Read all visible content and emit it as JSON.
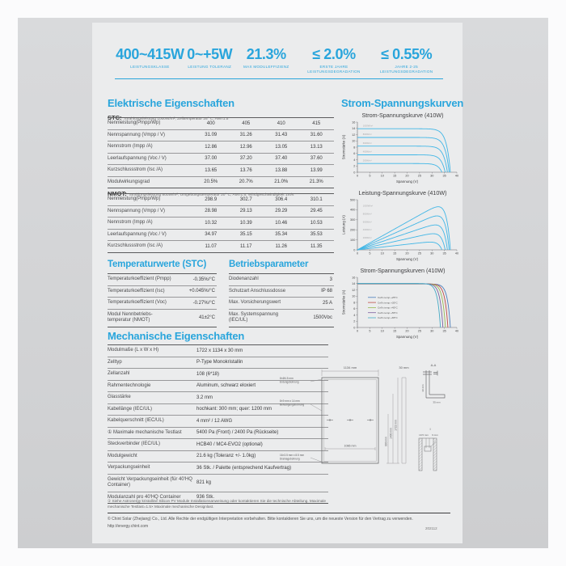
{
  "meta": {
    "accent_color": "#29a5dc",
    "curve_color": "#41b6e6",
    "page_bg": "#ebeced",
    "card_bg": "#d2d3d5"
  },
  "header": {
    "specs": [
      {
        "value": "400~415W",
        "label": "LEISTUNGSKLASSE"
      },
      {
        "value": "0~+5W",
        "label": "LEISTUNG TOLERANZ"
      },
      {
        "value": "21.3%",
        "label": "MAX MODULEFFIZIENZ"
      },
      {
        "value": "≤ 2.0%",
        "label": "ERSTE JAHRE LEISTUNGSDEGRADATION"
      },
      {
        "value": "≤ 0.55%",
        "label": "JAHRE 2-25 LEISTUNGSDEGRADATION"
      }
    ]
  },
  "electrical": {
    "title": "Elektrische Eigenschaften",
    "stc": {
      "tag": "STC:",
      "conditions": "Strahlungsleistung 1000W/m², Zelltemperatur 25° C, AM=1.5",
      "rows": [
        {
          "label": "Nennleistung(Pmpp/Wp)",
          "values": [
            "400",
            "405",
            "410",
            "415"
          ]
        },
        {
          "label": "Nennspannung (Vmpp / V)",
          "values": [
            "31.09",
            "31.26",
            "31.43",
            "31.60"
          ]
        },
        {
          "label": "Nennstrom (Impp /A)",
          "values": [
            "12.86",
            "12.96",
            "13.05",
            "13.13"
          ]
        },
        {
          "label": "Leerlaufspannung (Voc / V)",
          "values": [
            "37.00",
            "37.20",
            "37.40",
            "37.60"
          ]
        },
        {
          "label": "Kurzschlussstrom (Isc /A)",
          "values": [
            "13.65",
            "13.76",
            "13.88",
            "13.99"
          ]
        },
        {
          "label": "Modulwirkungsgrad",
          "values": [
            "20.5%",
            "20.7%",
            "21.0%",
            "21.3%"
          ]
        }
      ]
    },
    "nmot": {
      "tag": "NMOT:",
      "conditions": "Strahlungsleistung 800W/m², Umgebungstemperatur 20° C, AM=1.5, Windgeschwindigkeit 1m/s",
      "rows": [
        {
          "label": "Nennleistung(Pmpp/Wp)",
          "values": [
            "298.9",
            "302.7",
            "306.4",
            "310.1"
          ]
        },
        {
          "label": "Nennspannung (Vmpp / V)",
          "values": [
            "28.98",
            "29.13",
            "29.29",
            "29.45"
          ]
        },
        {
          "label": "Nennstrom (Impp /A)",
          "values": [
            "10.32",
            "10.39",
            "10.46",
            "10.53"
          ]
        },
        {
          "label": "Leerlaufspannung (Voc / V)",
          "values": [
            "34.97",
            "35.15",
            "35.34",
            "35.53"
          ]
        },
        {
          "label": "Kurzschlussstrom (Isc /A)",
          "values": [
            "11.07",
            "11.17",
            "11.26",
            "11.35"
          ]
        }
      ]
    }
  },
  "temperature": {
    "title": "Temperaturwerte (STC)",
    "rows": [
      {
        "label": "Temperaturkoeffizient (Pmpp)",
        "value": "-0.35%/°C"
      },
      {
        "label": "Temperaturkoeffizient (Isc)",
        "value": "+0.045%/°C"
      },
      {
        "label": "Temperaturkoeffizient (Voc)",
        "value": "-0.27%/°C"
      },
      {
        "label": "Modul Nennbetriebs- temperatur (NMOT)",
        "value": "41±2°C"
      }
    ]
  },
  "operating": {
    "title": "Betriebsparameter",
    "rows": [
      {
        "label": "Diodenanzahl",
        "value": "3"
      },
      {
        "label": "Schutzart Anschlussdosse",
        "value": "IP 68"
      },
      {
        "label": "Max. Vorsicherungswert",
        "value": "25 A"
      },
      {
        "label": "Max. Systemspannung (IEC/UL)",
        "value": "1500Vᴅᴄ"
      }
    ]
  },
  "mechanical": {
    "title": "Mechanische Eigenschaften",
    "rows": [
      {
        "label": "Modulmaße (L x W x H)",
        "value": "1722 x 1134 x 30 mm"
      },
      {
        "label": "Zelltyp",
        "value": "P-Type Monokristallin"
      },
      {
        "label": "Zellanzahl",
        "value": "108 (6*18)"
      },
      {
        "label": "Rahmentechnologie",
        "value": "Aluminum, schwarz eloxiert"
      },
      {
        "label": "Glasstärke",
        "value": "3.2 mm"
      },
      {
        "label": "Kabellänge  (IEC/UL)",
        "value": "hochkant: 300 mm;  quer: 1200 mm"
      },
      {
        "label": "Kabelquerschnitt (IEC/UL)",
        "value": "4 mm² / 12 AWG"
      },
      {
        "label": "① Maximale mechanische Testlast",
        "value": "5400 Pa (Front) / 2400 Pa (Rückseite)"
      },
      {
        "label": "Steckverbinder (IEC/UL)",
        "value": "HCB40 / MC4-EVO2 (optional)"
      },
      {
        "label": "Modulgewicht",
        "value": "21.6 kg (Toleranz +/- 1.0kg)"
      },
      {
        "label": "Verpackungseinheit",
        "value": "36 Stk. / Palette (entsprechend Kaufvertrag)"
      },
      {
        "label": "Gewicht Verpackungseinheit (für 40'HQ Container)",
        "value": "821 kg"
      },
      {
        "label": "Modulanzahl pro 40'HQ Container",
        "value": "936 Stk."
      }
    ],
    "footnote": "① Siehe Astronergy kristalline Silicon PV Module Installationsanweisung oder kontaktieren Sie die technische Abteilung. Maximale mechanische Testlast=1.5× Maximale mechanische Designlast."
  },
  "curves": {
    "section_title": "Strom-Spannungskurven",
    "charts": [
      {
        "id": "iv-irradiance",
        "type": "line",
        "title": "Strom-Spannungskurve  (410W)",
        "xlabel": "Spannung (V)",
        "ylabel": "Stromstärke (A)",
        "xlim": [
          0,
          40
        ],
        "ylim": [
          0,
          16
        ],
        "xticks": [
          0,
          5,
          10,
          15,
          20,
          25,
          30,
          35,
          40
        ],
        "yticks": [
          0,
          2,
          4,
          6,
          8,
          10,
          12,
          14,
          16
        ],
        "mode": "current",
        "sharpness": 1.6,
        "series": [
          {
            "name": "1000W/m²",
            "isc": 13.88,
            "voc": 37.4
          },
          {
            "name": "800W/m²",
            "isc": 11.1,
            "voc": 36.9
          },
          {
            "name": "600W/m²",
            "isc": 8.33,
            "voc": 36.2
          },
          {
            "name": "400W/m²",
            "isc": 5.55,
            "voc": 35.3
          },
          {
            "name": "200W/m²",
            "isc": 2.78,
            "voc": 34.0
          }
        ]
      },
      {
        "id": "pv-irradiance",
        "type": "line",
        "title": "Leistung-Spannungskurve  (410W)",
        "xlabel": "Spannung (V)",
        "ylabel": "Leistung (A)",
        "xlim": [
          0,
          40
        ],
        "ylim": [
          0,
          500
        ],
        "xticks": [
          0,
          5,
          10,
          15,
          20,
          25,
          30,
          35,
          40
        ],
        "yticks": [
          0,
          100,
          200,
          300,
          400,
          500
        ],
        "mode": "power",
        "sharpness": 1.6,
        "series": [
          {
            "name": "1000W/m²",
            "isc": 13.88,
            "voc": 37.4
          },
          {
            "name": "800W/m²",
            "isc": 11.1,
            "voc": 36.9
          },
          {
            "name": "600W/m²",
            "isc": 8.33,
            "voc": 36.2
          },
          {
            "name": "400W/m²",
            "isc": 5.55,
            "voc": 35.3
          },
          {
            "name": "200W/m²",
            "isc": 2.78,
            "voc": 34.0
          }
        ]
      },
      {
        "id": "iv-temperature",
        "type": "line",
        "title": "Strom-Spannungskurven  (410W)",
        "xlabel": "Spannung (V)",
        "ylabel": "Stromstärke (A)",
        "xlim": [
          0,
          40
        ],
        "ylim": [
          0,
          16
        ],
        "xticks": [
          0,
          5,
          10,
          15,
          20,
          25,
          30,
          35,
          40
        ],
        "yticks": [
          0,
          2,
          4,
          6,
          8,
          10,
          12,
          14,
          16
        ],
        "mode": "current",
        "sharpness": 1.2,
        "legend": true,
        "series": [
          {
            "name": "Cell's temp.+25°C",
            "isc": 13.88,
            "voc": 37.4,
            "color": "#4a7ebb"
          },
          {
            "name": "Cell's temp.+35°C",
            "isc": 13.92,
            "voc": 36.4,
            "color": "#be4b48"
          },
          {
            "name": "Cell's temp.+45°C",
            "isc": 13.96,
            "voc": 35.4,
            "color": "#98b954"
          },
          {
            "name": "Cell's temp.+55°C",
            "isc": 14.0,
            "voc": 34.4,
            "color": "#7d60a0"
          },
          {
            "name": "Cell's temp.+65°C",
            "isc": 14.04,
            "voc": 33.4,
            "color": "#46aac5"
          }
        ]
      }
    ]
  },
  "drawing": {
    "width_label": "1134 mm",
    "thickness_label": "30 mm",
    "height_labels": [
      "990 mm",
      "1400 mm",
      "1722 mm"
    ],
    "bottom_width_label": "1086 mm",
    "hole_labels": [
      {
        "line1": "8×Ø4.5 mm",
        "line2": "Erdungsbohrung"
      },
      {
        "line1": "8×9 mm x 14 mm",
        "line2": "Befestigungsbohrung"
      },
      {
        "line1": "16×3.5 mm x 8.5 mm",
        "line2": "Drainagebohrung"
      }
    ],
    "section_label": "A-A",
    "section_dim_1": "30 mm",
    "section_dim_2": "35 mm",
    "detail_label": "I",
    "detail_dim_1": "10.5 mm",
    "detail_dim_2": "9 mm"
  },
  "footer": {
    "copyright": "© Chint Solar (Zhejiang) Co., Ltd. Alle Rechte der endgültigen Interpretation vorbehalten. Bitte kontaktieren Sie uns, um die neueste Version für den Vertrag zu verwenden.",
    "url": "http://energy.chint.com",
    "doc_number": "202112"
  }
}
